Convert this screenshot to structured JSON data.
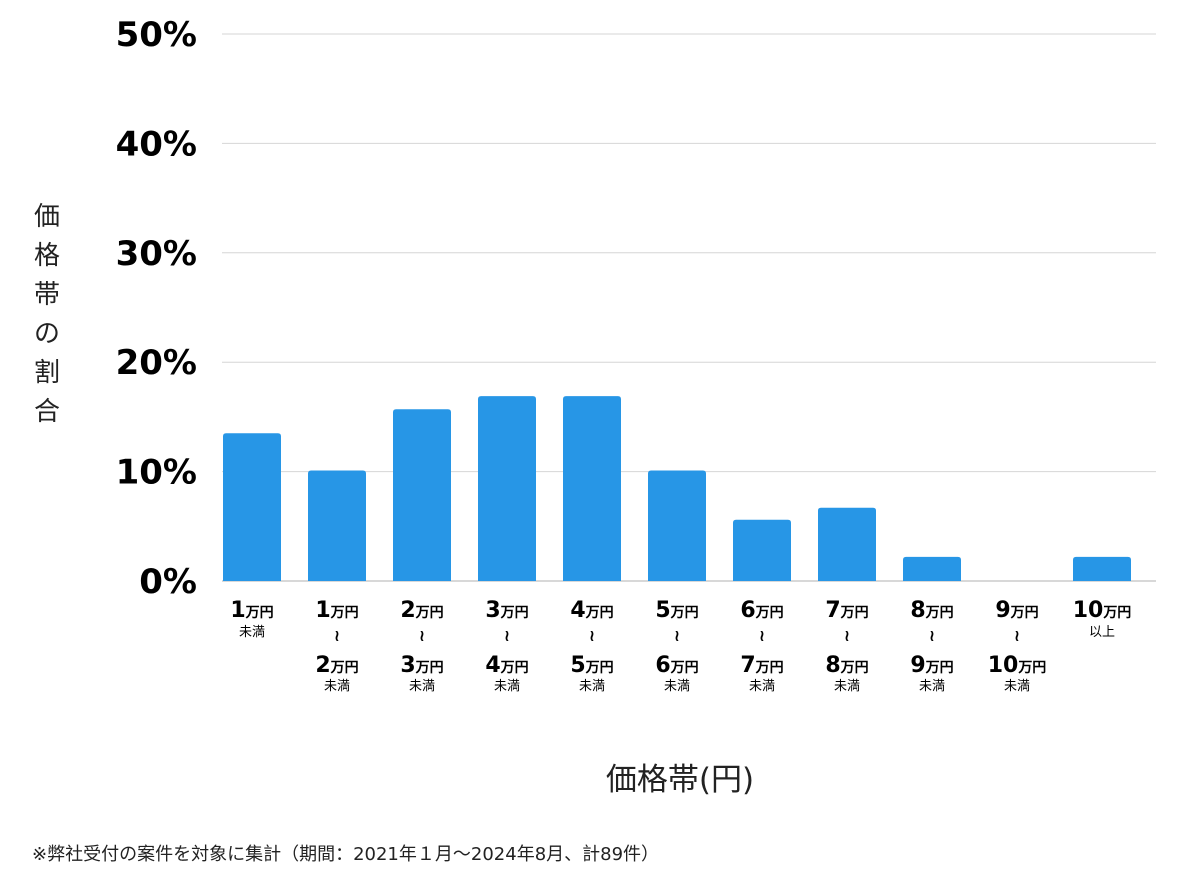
{
  "chart_data": {
    "type": "bar",
    "xlabel": "価格帯(円)",
    "ylabel": "価格帯の割合",
    "ylim": [
      0,
      50
    ],
    "yticks": [
      "0%",
      "10%",
      "20%",
      "30%",
      "40%",
      "50%"
    ],
    "ytick_values": [
      0,
      10,
      20,
      30,
      40,
      50
    ],
    "grid": true,
    "color": "#2796e6",
    "categories": [
      {
        "from": "1",
        "from_unit": "万円",
        "note": "未満"
      },
      {
        "from": "1",
        "from_unit": "万円",
        "sep": "≀",
        "to": "2",
        "to_unit": "万円",
        "note": "未満"
      },
      {
        "from": "2",
        "from_unit": "万円",
        "sep": "≀",
        "to": "3",
        "to_unit": "万円",
        "note": "未満"
      },
      {
        "from": "3",
        "from_unit": "万円",
        "sep": "≀",
        "to": "4",
        "to_unit": "万円",
        "note": "未満"
      },
      {
        "from": "4",
        "from_unit": "万円",
        "sep": "≀",
        "to": "5",
        "to_unit": "万円",
        "note": "未満"
      },
      {
        "from": "5",
        "from_unit": "万円",
        "sep": "≀",
        "to": "6",
        "to_unit": "万円",
        "note": "未満"
      },
      {
        "from": "6",
        "from_unit": "万円",
        "sep": "≀",
        "to": "7",
        "to_unit": "万円",
        "note": "未満"
      },
      {
        "from": "7",
        "from_unit": "万円",
        "sep": "≀",
        "to": "8",
        "to_unit": "万円",
        "note": "未満"
      },
      {
        "from": "8",
        "from_unit": "万円",
        "sep": "≀",
        "to": "9",
        "to_unit": "万円",
        "note": "未満"
      },
      {
        "from": "9",
        "from_unit": "万円",
        "sep": "≀",
        "to": "10",
        "to_unit": "万円",
        "note": "未満"
      },
      {
        "from": "10",
        "from_unit": "万円",
        "note": "以上"
      }
    ],
    "values": [
      13.5,
      10.1,
      15.7,
      16.9,
      16.9,
      10.1,
      5.6,
      6.7,
      2.2,
      0,
      2.2
    ]
  },
  "ylabel_chars": [
    "価",
    "格",
    "帯",
    "の",
    "割",
    "合"
  ],
  "footnote": "※弊社受付の案件を対象に集計（期間：2021年１月〜2024年8月、計89件）"
}
